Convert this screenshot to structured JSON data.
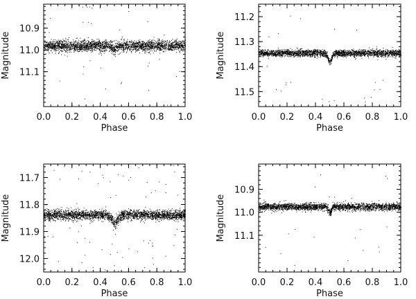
{
  "chart_data": [
    {
      "type": "scatter",
      "xlabel": "Phase",
      "ylabel": "Magnitude",
      "xlim": [
        0.0,
        1.0
      ],
      "ylim": [
        11.26,
        10.79
      ],
      "y_inverted": true,
      "xticks": [
        "0.0",
        "0.2",
        "0.4",
        "0.6",
        "0.8",
        "1.0"
      ],
      "yticks": [
        "10.9",
        "11.0",
        "11.1"
      ],
      "ytick_values": [
        10.9,
        11.0,
        11.1
      ],
      "series": [
        {
          "baseline": 10.98,
          "scatter_sigma": 0.013,
          "dip_phase": 0.5,
          "dip_depth": 0.015,
          "dip_width": 0.015,
          "outlier_fraction": 0.01
        }
      ],
      "grid": false,
      "marker_color": "#000000"
    },
    {
      "type": "scatter",
      "xlabel": "Phase",
      "ylabel": "Magnitude",
      "xlim": [
        0.0,
        1.0
      ],
      "ylim": [
        11.56,
        11.15
      ],
      "y_inverted": true,
      "xticks": [
        "0.0",
        "0.2",
        "0.4",
        "0.6",
        "0.8",
        "1.0"
      ],
      "yticks": [
        "11.2",
        "11.3",
        "11.4",
        "11.5"
      ],
      "ytick_values": [
        11.2,
        11.3,
        11.4,
        11.5
      ],
      "series": [
        {
          "baseline": 11.345,
          "scatter_sigma": 0.007,
          "dip_phase": 0.5,
          "dip_depth": 0.035,
          "dip_width": 0.012,
          "outlier_fraction": 0.012
        }
      ],
      "grid": false,
      "marker_color": "#000000"
    },
    {
      "type": "scatter",
      "xlabel": "Phase",
      "ylabel": "Magnitude",
      "xlim": [
        0.0,
        1.0
      ],
      "ylim": [
        12.05,
        11.65
      ],
      "y_inverted": true,
      "xticks": [
        "0.0",
        "0.2",
        "0.4",
        "0.6",
        "0.8",
        "1.0"
      ],
      "yticks": [
        "11.7",
        "11.8",
        "11.9",
        "12.0"
      ],
      "ytick_values": [
        11.7,
        11.8,
        11.9,
        12.0
      ],
      "series": [
        {
          "baseline": 11.838,
          "scatter_sigma": 0.009,
          "dip_phase": 0.5,
          "dip_depth": 0.03,
          "dip_width": 0.02,
          "outlier_fraction": 0.03
        }
      ],
      "grid": false,
      "marker_color": "#000000"
    },
    {
      "type": "scatter",
      "xlabel": "Phase",
      "ylabel": "Magnitude",
      "xlim": [
        0.0,
        1.0
      ],
      "ylim": [
        11.26,
        10.79
      ],
      "y_inverted": true,
      "xticks": [
        "0.0",
        "0.2",
        "0.4",
        "0.6",
        "0.8",
        "1.0"
      ],
      "yticks": [
        "10.9",
        "11.0",
        "11.1"
      ],
      "ytick_values": [
        10.9,
        11.0,
        11.1
      ],
      "series": [
        {
          "baseline": 10.975,
          "scatter_sigma": 0.008,
          "dip_phase": 0.5,
          "dip_depth": 0.03,
          "dip_width": 0.01,
          "outlier_fraction": 0.01
        }
      ],
      "grid": false,
      "marker_color": "#000000"
    }
  ]
}
